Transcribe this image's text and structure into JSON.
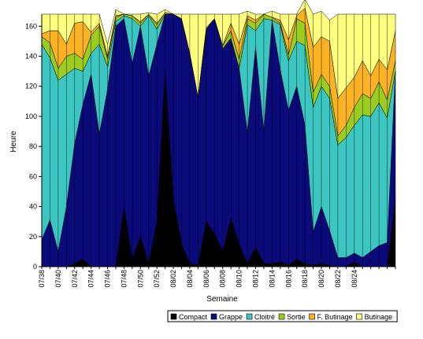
{
  "chart_data": {
    "type": "area",
    "stacked": true,
    "title": "",
    "xlabel": "Semaine",
    "ylabel": "Heure",
    "ylim": [
      0,
      168
    ],
    "yticks": [
      0,
      20,
      40,
      60,
      80,
      100,
      120,
      140,
      160
    ],
    "grid": false,
    "legend_position": "bottom-right",
    "x_tick_labels": [
      "07/38",
      "07/40",
      "07/42",
      "07/44",
      "07/46",
      "07/48",
      "07/50",
      "07/52",
      "08/02",
      "08/04",
      "08/06",
      "08/08",
      "08/10",
      "08/12",
      "08/14",
      "08/16",
      "08/18",
      "08/20",
      "08/22",
      "08/24"
    ],
    "x_tick_every": 2,
    "series": [
      {
        "name": "Compact",
        "color": "#000000",
        "values": [
          0,
          0,
          0,
          0,
          2,
          5,
          0,
          0,
          0,
          0,
          40,
          5,
          20,
          2,
          30,
          130,
          45,
          15,
          2,
          1,
          30,
          22,
          10,
          32,
          15,
          2,
          13,
          2,
          2,
          3,
          1,
          5,
          2,
          1,
          2,
          1,
          0,
          0,
          3,
          0,
          0,
          0,
          0,
          45
        ]
      },
      {
        "name": "Grappe",
        "color": "#0a0a7a",
        "values": [
          18,
          31,
          10,
          40,
          80,
          103,
          128,
          88,
          118,
          160,
          125,
          130,
          140,
          125,
          118,
          38,
          123,
          150,
          140,
          112,
          128,
          143,
          135,
          120,
          117,
          87,
          133,
          88,
          162,
          128,
          103,
          115,
          92,
          22,
          38,
          23,
          6,
          6,
          6,
          6,
          10,
          14,
          16,
          85
        ]
      },
      {
        "name": "Cloitré",
        "color": "#3cc6c2",
        "values": [
          130,
          108,
          114,
          88,
          50,
          22,
          14,
          60,
          15,
          3,
          2,
          30,
          0,
          40,
          10,
          0,
          0,
          0,
          0,
          0,
          0,
          0,
          0,
          0,
          0,
          72,
          11,
          75,
          0,
          30,
          33,
          30,
          53,
          83,
          80,
          88,
          75,
          80,
          85,
          95,
          90,
          95,
          83,
          0
        ]
      },
      {
        "name": "Sortie",
        "color": "#9ccc20",
        "values": [
          5,
          10,
          8,
          12,
          10,
          8,
          12,
          12,
          5,
          3,
          1,
          2,
          2,
          1,
          3,
          1,
          0,
          0,
          0,
          0,
          1,
          0,
          2,
          5,
          6,
          4,
          5,
          3,
          2,
          1,
          4,
          15,
          15,
          10,
          8,
          8,
          6,
          8,
          12,
          14,
          12,
          14,
          12,
          7
        ]
      },
      {
        "name": "F. Butinage",
        "color": "#fbb324",
        "values": [
          2,
          8,
          25,
          8,
          20,
          25,
          2,
          2,
          2,
          1,
          0,
          0,
          1,
          0,
          1,
          0,
          0,
          0,
          0,
          0,
          0,
          0,
          0,
          5,
          10,
          2,
          2,
          0,
          0,
          2,
          10,
          2,
          10,
          30,
          25,
          30,
          25,
          25,
          20,
          22,
          15,
          15,
          20,
          20
        ]
      },
      {
        "name": "Butinage",
        "color": "#ffff80",
        "values": [
          13,
          11,
          11,
          20,
          6,
          5,
          12,
          6,
          8,
          4,
          0,
          1,
          5,
          1,
          6,
          2,
          0,
          3,
          26,
          55,
          9,
          3,
          21,
          6,
          20,
          3,
          4,
          0,
          4,
          4,
          17,
          1,
          6,
          22,
          17,
          14,
          56,
          49,
          42,
          31,
          41,
          30,
          37,
          11
        ]
      }
    ]
  }
}
